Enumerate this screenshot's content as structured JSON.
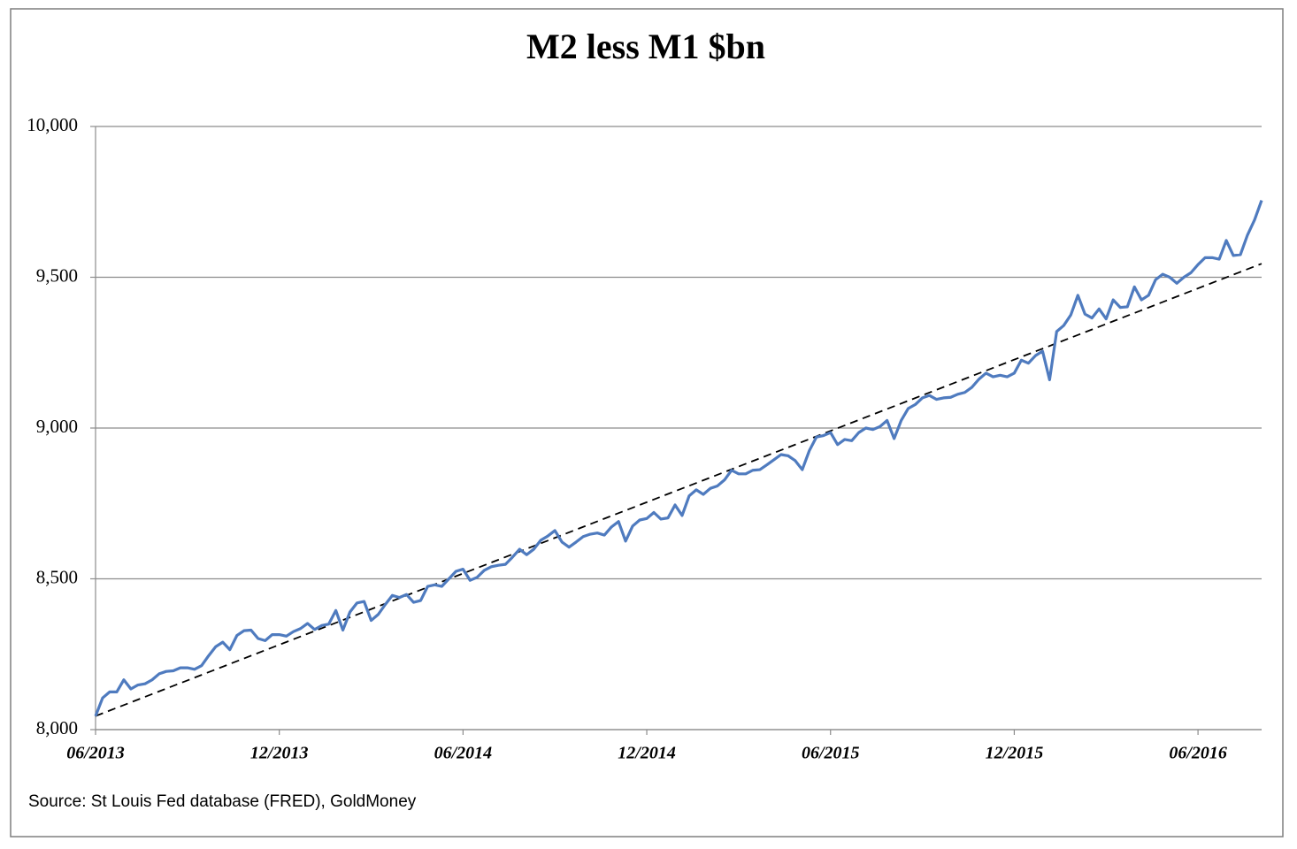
{
  "chart_data": {
    "type": "line",
    "title": "M2 less  M1 $bn",
    "source": "Source: St Louis Fed  database (FRED), GoldMoney",
    "color": "#4f7bbf",
    "grid": true,
    "ylim": [
      8000,
      10000
    ],
    "yticks": [
      {
        "value": 8000,
        "label": "8,000"
      },
      {
        "value": 8500,
        "label": "8,500"
      },
      {
        "value": 9000,
        "label": "9,000"
      },
      {
        "value": 9500,
        "label": "9,500"
      },
      {
        "value": 10000,
        "label": "10,000"
      }
    ],
    "categories": [
      "06/2013",
      null,
      null,
      null,
      null,
      null,
      null,
      null,
      null,
      null,
      null,
      null,
      null,
      null,
      null,
      null,
      null,
      null,
      null,
      null,
      null,
      null,
      null,
      null,
      null,
      null,
      "12/2013",
      null,
      null,
      null,
      null,
      null,
      null,
      null,
      null,
      null,
      null,
      null,
      null,
      null,
      null,
      null,
      null,
      null,
      null,
      null,
      null,
      null,
      null,
      null,
      null,
      null,
      "06/2014",
      null,
      null,
      null,
      null,
      null,
      null,
      null,
      null,
      null,
      null,
      null,
      null,
      null,
      null,
      null,
      null,
      null,
      null,
      null,
      null,
      null,
      null,
      null,
      null,
      null,
      "12/2014",
      null,
      null,
      null,
      null,
      null,
      null,
      null,
      null,
      null,
      null,
      null,
      null,
      null,
      null,
      null,
      null,
      null,
      null,
      null,
      null,
      null,
      null,
      null,
      null,
      null,
      "06/2015",
      null,
      null,
      null,
      null,
      null,
      null,
      null,
      null,
      null,
      null,
      null,
      null,
      null,
      null,
      null,
      null,
      null,
      null,
      null,
      null,
      null,
      null,
      null,
      null,
      null,
      "12/2015",
      null,
      null,
      null,
      null,
      null,
      null,
      null,
      null,
      null,
      null,
      null,
      null,
      null,
      null,
      null,
      null,
      null,
      null,
      null,
      null,
      null,
      null,
      null,
      null,
      null,
      "06/2016",
      null,
      null,
      null,
      null,
      null,
      null,
      null,
      null,
      null
    ],
    "values": [
      8045,
      8105,
      8125,
      8125,
      8165,
      8135,
      8148,
      8152,
      8165,
      8185,
      8193,
      8195,
      8205,
      8205,
      8200,
      8212,
      8245,
      8275,
      8290,
      8265,
      8312,
      8328,
      8330,
      8302,
      8295,
      8315,
      8315,
      8310,
      8325,
      8335,
      8352,
      8332,
      8345,
      8350,
      8395,
      8330,
      8390,
      8420,
      8425,
      8362,
      8382,
      8415,
      8445,
      8438,
      8448,
      8422,
      8428,
      8475,
      8480,
      8475,
      8500,
      8525,
      8532,
      8495,
      8505,
      8528,
      8540,
      8545,
      8548,
      8572,
      8598,
      8580,
      8598,
      8628,
      8642,
      8660,
      8622,
      8605,
      8622,
      8640,
      8648,
      8652,
      8645,
      8672,
      8690,
      8625,
      8675,
      8695,
      8700,
      8720,
      8698,
      8702,
      8745,
      8710,
      8775,
      8795,
      8780,
      8800,
      8808,
      8828,
      8860,
      8848,
      8848,
      8860,
      8862,
      8878,
      8895,
      8912,
      8908,
      8892,
      8862,
      8925,
      8970,
      8975,
      8985,
      8945,
      8962,
      8958,
      8985,
      9000,
      8995,
      9005,
      9025,
      8965,
      9025,
      9065,
      9078,
      9100,
      9108,
      9095,
      9100,
      9102,
      9112,
      9118,
      9135,
      9162,
      9182,
      9170,
      9175,
      9170,
      9182,
      9225,
      9215,
      9240,
      9255,
      9160,
      9320,
      9340,
      9375,
      9440,
      9378,
      9365,
      9395,
      9362,
      9425,
      9400,
      9402,
      9468,
      9425,
      9440,
      9492,
      9510,
      9500,
      9480,
      9500,
      9515,
      9542,
      9565,
      9565,
      9560,
      9622,
      9572,
      9575,
      9640,
      9690,
      9755
    ],
    "trend": {
      "from": 8045,
      "to": 9545,
      "color": "#000000"
    }
  }
}
